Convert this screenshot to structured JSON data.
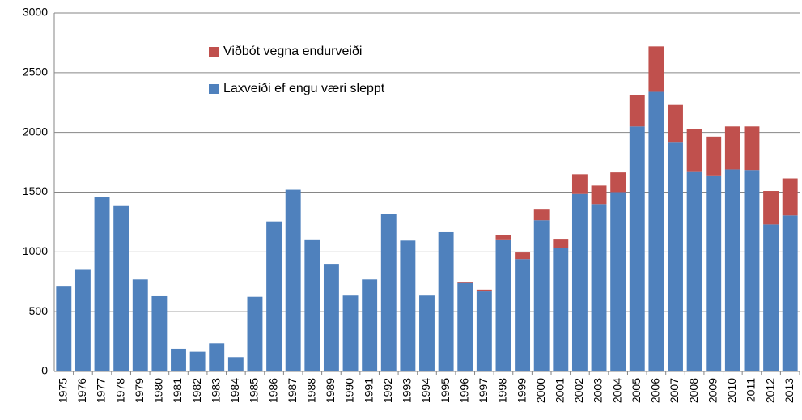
{
  "chart_data": {
    "type": "stacked-bar",
    "categories": [
      "1975",
      "1976",
      "1977",
      "1978",
      "1979",
      "1980",
      "1981",
      "1982",
      "1983",
      "1984",
      "1985",
      "1986",
      "1987",
      "1988",
      "1989",
      "1990",
      "1991",
      "1992",
      "1993",
      "1994",
      "1995",
      "1996",
      "1997",
      "1998",
      "1999",
      "2000",
      "2001",
      "2002",
      "2003",
      "2004",
      "2005",
      "2006",
      "2007",
      "2008",
      "2009",
      "2010",
      "2011",
      "2012",
      "2013"
    ],
    "series": [
      {
        "name": "Laxveiði ef engu væri sleppt",
        "color": "#4f81bd",
        "values": [
          710,
          850,
          1460,
          1390,
          770,
          630,
          190,
          165,
          235,
          120,
          625,
          1255,
          1520,
          1105,
          900,
          635,
          770,
          1315,
          1095,
          635,
          1165,
          740,
          670,
          1105,
          940,
          1265,
          1035,
          1485,
          1400,
          1500,
          2050,
          2340,
          1915,
          1675,
          1640,
          1690,
          1685,
          1230,
          1305
        ]
      },
      {
        "name": "Viðbót vegna endurveiði",
        "color": "#c0504d",
        "values": [
          0,
          0,
          0,
          0,
          0,
          0,
          0,
          0,
          0,
          0,
          0,
          0,
          0,
          0,
          0,
          0,
          0,
          0,
          0,
          0,
          0,
          10,
          15,
          35,
          55,
          95,
          75,
          165,
          155,
          165,
          265,
          380,
          315,
          355,
          325,
          360,
          365,
          280,
          310
        ]
      }
    ],
    "ylim": [
      0,
      3000
    ],
    "yticks": [
      0,
      500,
      1000,
      1500,
      2000,
      2500,
      3000
    ],
    "grid": true
  }
}
